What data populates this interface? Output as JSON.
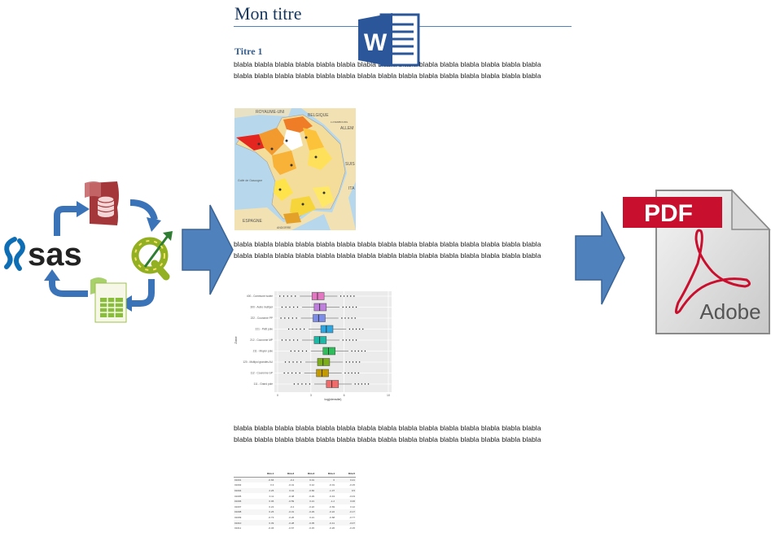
{
  "document": {
    "title": "Mon titre",
    "heading1": "Titre 1",
    "paragraph_line": "blabla blabla blabla blabla blabla blabla blabla blabla blabla blabla blabla blabla blabla blabla blabla"
  },
  "map": {
    "labels": [
      "ROYAUME-UNI",
      "BELGIQUE",
      "ALLEM",
      "SUIS",
      "ITA",
      "ESPAGNE",
      "ANDORRE",
      "Golfe de Gascogne",
      "LUXEMBOURG"
    ]
  },
  "boxplot": {
    "ylabel": "Zone",
    "xlabel": "log(densite)",
    "categories": [
      "400 - Commune isolee",
      "300 - Autre multipol",
      "222 - Couronne PP",
      "221 - Petit pole",
      "212 - Couronne MP",
      "211 - Moyen pole",
      "120 - Multipol grandes AU",
      "112 - Couronne GP",
      "111 - Grand pole"
    ],
    "medians": [
      3.6,
      3.8,
      3.7,
      4.4,
      3.8,
      4.6,
      4.1,
      4.0,
      4.9
    ],
    "colors": [
      "#e377c2",
      "#bf7fdc",
      "#7b8de8",
      "#2fa6e0",
      "#1fb8a6",
      "#2fbd5c",
      "#7cad1a",
      "#c39b00",
      "#f06b6b"
    ],
    "xticks": [
      "0",
      "3",
      "6",
      "10"
    ]
  },
  "table": {
    "headers": [
      "",
      "Dim.1",
      "Dim.2",
      "Dim.3",
      "Dim.4",
      "Dim.5"
    ],
    "rows": [
      [
        "01001",
        "-0.66",
        "-0.4",
        "0.01",
        "0",
        "0.21"
      ],
      [
        "01002",
        "0.3",
        "-0.41",
        "0.12",
        "-0.01",
        "-0.15"
      ],
      [
        "01004",
        "2.26",
        "0.41",
        "-0.66",
        "-1.37",
        "0.5"
      ],
      [
        "01005",
        "0.11",
        "-0.48",
        "-0.29",
        "-0.43",
        "-0.03"
      ],
      [
        "01006",
        "0.06",
        "-0.59",
        "0.21",
        "-1.2",
        "0.06"
      ],
      [
        "01007",
        "0.22",
        "-0.4",
        "-0.22",
        "-0.69",
        "0.12"
      ],
      [
        "01008",
        "0.26",
        "-0.31",
        "-0.29",
        "-0.22",
        "-0.17"
      ],
      [
        "01009",
        "-0.73",
        "-0.26",
        "0.21",
        "-0.68",
        "-0.77"
      ],
      [
        "01010",
        "0.39",
        "-0.28",
        "-0.05",
        "-0.41",
        "-0.07"
      ],
      [
        "01011",
        "-0.46",
        "-0.67",
        "-0.15",
        "-0.26",
        "-0.15"
      ]
    ]
  },
  "icons": {
    "sas": "sas",
    "word": "W",
    "pdf_banner": "PDF",
    "adobe": "Adobe",
    "qgis": "Q"
  },
  "colors": {
    "arrow_blue": "#4f81bd",
    "word_blue": "#2b579a",
    "pdf_red": "#c8102e",
    "qgis_green": "#93b023"
  }
}
